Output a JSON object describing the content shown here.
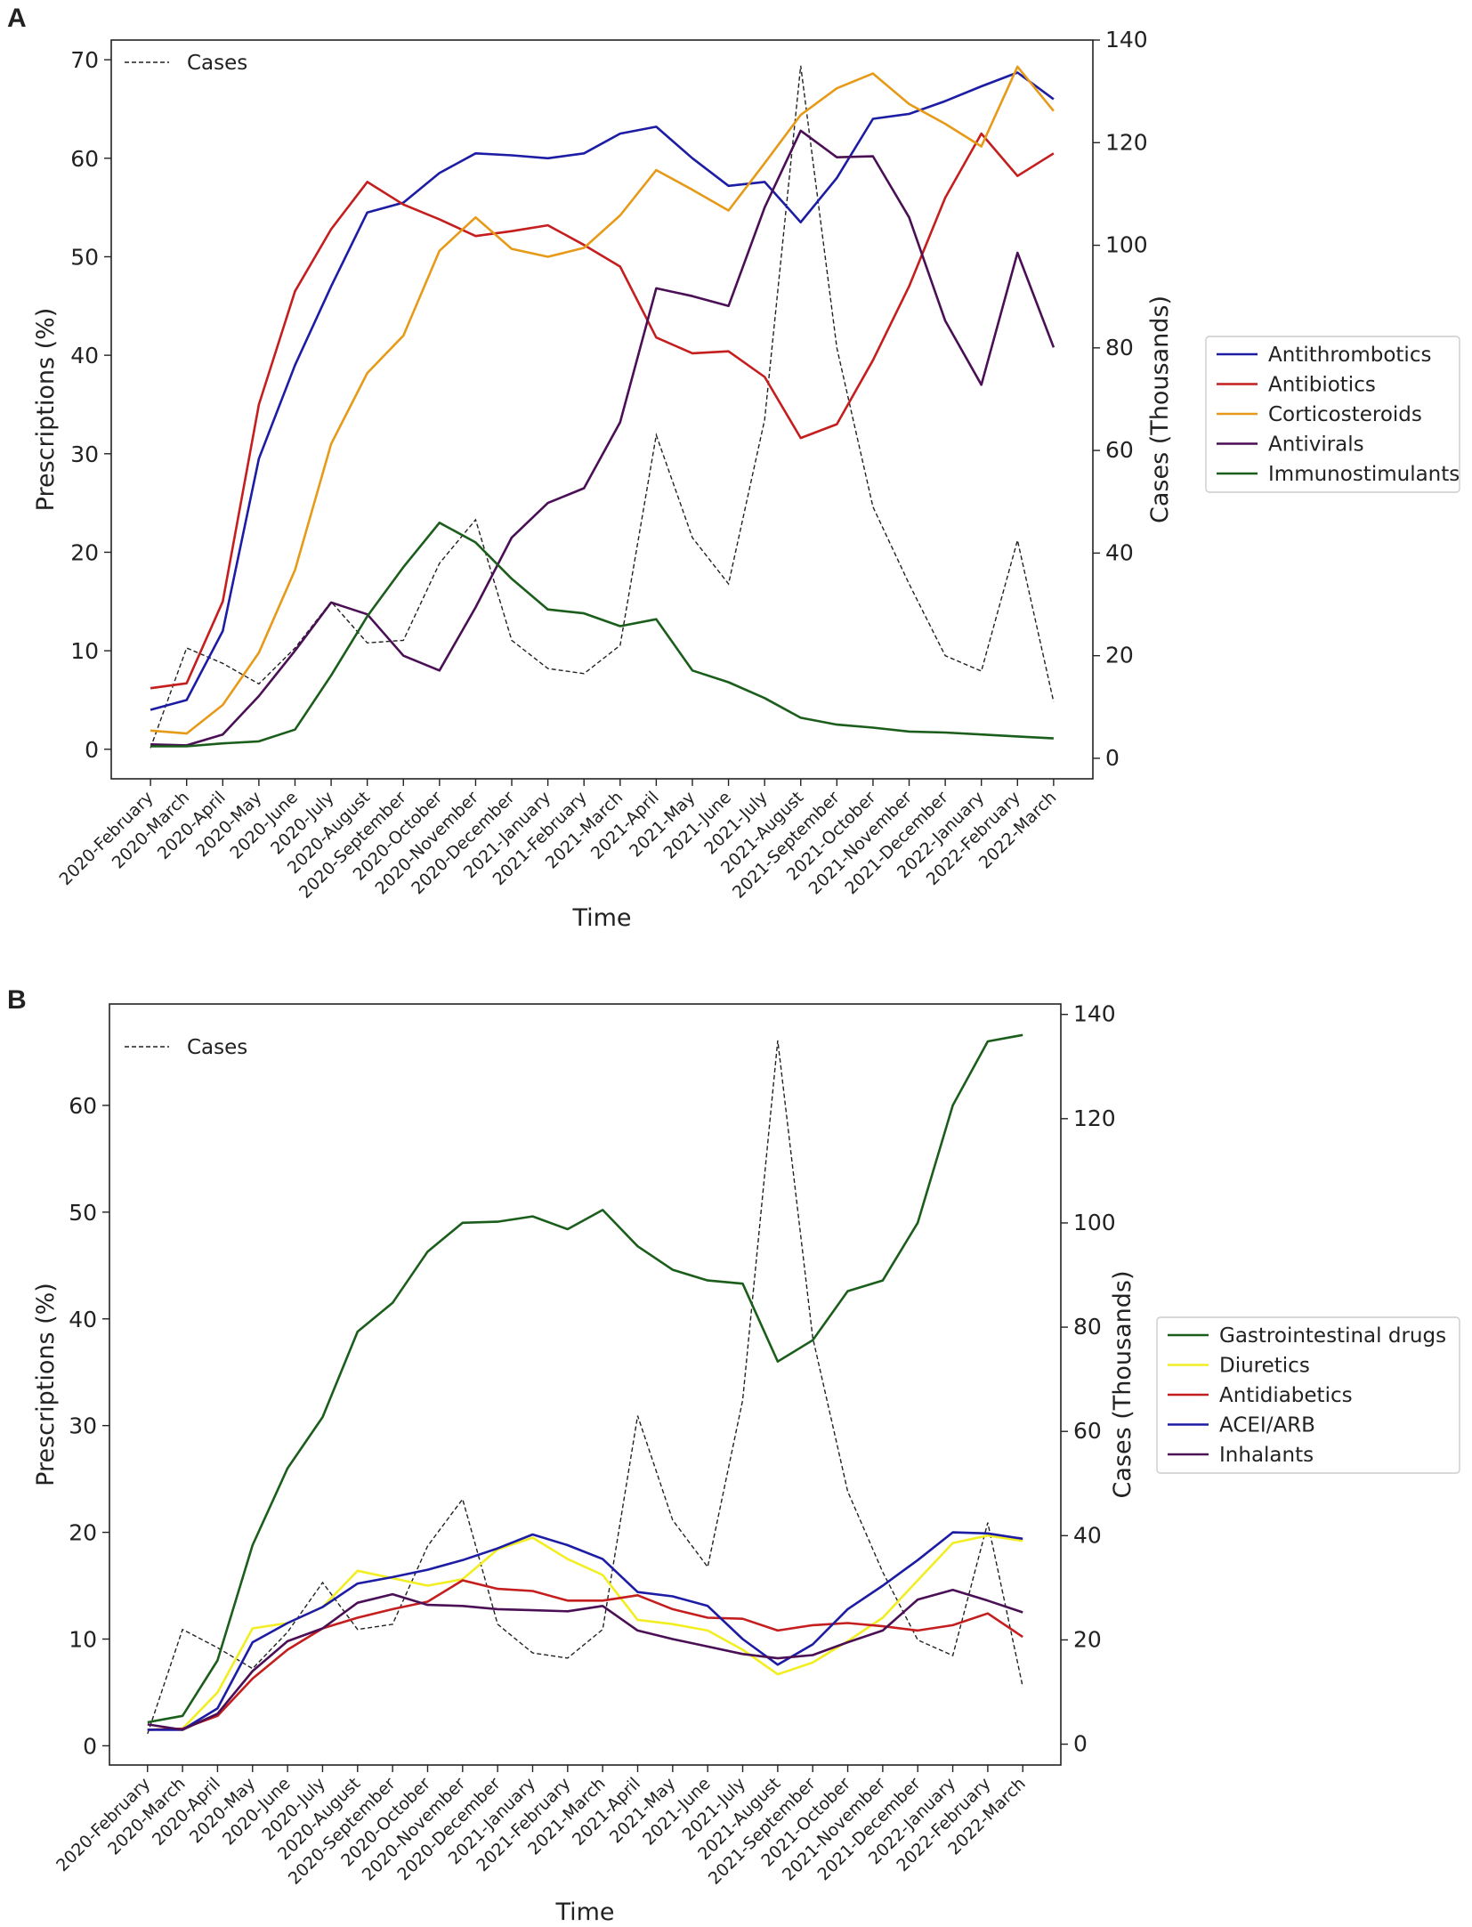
{
  "figure": {
    "panels": [
      {
        "label": "A",
        "legend_entries": [
          "Antithrombotics",
          "Antibiotics",
          "Corticosteroids",
          "Antivirals",
          "Immunostimulants"
        ],
        "cases_legend": "Cases"
      },
      {
        "label": "B",
        "legend_entries": [
          "Gastrointestinal drugs",
          "Diuretics",
          "Antidiabetics",
          "ACEI/ARB",
          "Inhalants"
        ],
        "cases_legend": "Cases"
      }
    ]
  },
  "chart_data": [
    {
      "type": "line",
      "panel": "A",
      "title": "",
      "xlabel": "Time",
      "ylabel": "Prescriptions (%)",
      "y2label": "Cases (Thousands)",
      "ylim": [
        -3,
        72
      ],
      "yticks": [
        0,
        10,
        20,
        30,
        40,
        50,
        60,
        70
      ],
      "y2lim": [
        -4,
        140
      ],
      "y2ticks": [
        0,
        20,
        40,
        60,
        80,
        100,
        120,
        140
      ],
      "legend_position": "right-outside",
      "categories": [
        "2020-February",
        "2020-March",
        "2020-April",
        "2020-May",
        "2020-June",
        "2020-July",
        "2020-August",
        "2020-September",
        "2020-October",
        "2020-November",
        "2020-December",
        "2021-January",
        "2021-February",
        "2021-March",
        "2021-April",
        "2021-May",
        "2021-June",
        "2021-July",
        "2021-August",
        "2021-September",
        "2021-October",
        "2021-November",
        "2021-December",
        "2022-January",
        "2022-February",
        "2022-March"
      ],
      "series": [
        {
          "name": "Antithrombotics",
          "color": "#1c1ca4",
          "values": [
            4.0,
            5.0,
            12.0,
            29.5,
            39.0,
            47.0,
            54.5,
            55.5,
            58.5,
            60.5,
            60.3,
            60.0,
            60.5,
            62.5,
            63.2,
            60.0,
            57.2,
            57.6,
            53.5,
            58.0,
            64.0,
            64.5,
            65.8,
            67.3,
            68.7,
            66.0
          ]
        },
        {
          "name": "Antibiotics",
          "color": "#c41e1e",
          "values": [
            6.2,
            6.7,
            15.0,
            35.0,
            46.5,
            52.8,
            57.6,
            55.3,
            53.8,
            52.1,
            52.6,
            53.2,
            51.2,
            49.0,
            41.8,
            40.2,
            40.4,
            37.8,
            31.6,
            33.0,
            39.5,
            47.0,
            56.0,
            62.5,
            58.2,
            60.5
          ]
        },
        {
          "name": "Corticosteroids",
          "color": "#e69a18",
          "values": [
            1.9,
            1.6,
            4.5,
            9.8,
            18.2,
            31.0,
            38.2,
            42.0,
            50.6,
            54.0,
            50.8,
            50.0,
            50.9,
            54.2,
            58.8,
            56.8,
            54.7,
            59.5,
            64.4,
            67.1,
            68.6,
            65.5,
            63.5,
            61.2,
            69.3,
            64.8
          ]
        },
        {
          "name": "Antivirals",
          "color": "#4a0f55",
          "values": [
            0.5,
            0.4,
            1.5,
            5.4,
            10.0,
            14.9,
            13.7,
            9.5,
            8.0,
            14.4,
            21.5,
            25.0,
            26.5,
            33.2,
            46.8,
            46.0,
            45.0,
            55.0,
            62.8,
            60.1,
            60.2,
            54.0,
            43.5,
            37.0,
            50.4,
            40.8
          ]
        },
        {
          "name": "Immunostimulants",
          "color": "#1b5e1b",
          "values": [
            0.3,
            0.3,
            0.6,
            0.8,
            2.0,
            7.5,
            13.5,
            18.5,
            23.0,
            21.0,
            17.3,
            14.2,
            13.8,
            12.5,
            13.2,
            8.0,
            6.8,
            5.2,
            3.2,
            2.5,
            2.2,
            1.8,
            1.7,
            1.5,
            1.3,
            1.1
          ]
        }
      ],
      "secondary_series": {
        "name": "Cases",
        "axis": "right",
        "style": "dashed",
        "color": "#222222",
        "values": [
          2,
          21.5,
          18.5,
          14.5,
          21.5,
          30.5,
          22.5,
          23,
          38,
          46.5,
          23,
          17.5,
          16.5,
          22,
          63,
          43,
          34,
          66,
          135,
          80,
          49,
          34,
          20,
          17,
          42.5,
          11
        ]
      }
    },
    {
      "type": "line",
      "panel": "B",
      "title": "",
      "xlabel": "Time",
      "ylabel": "Prescriptions (%)",
      "y2label": "Cases (Thousands)",
      "ylim": [
        -1.8,
        69.5
      ],
      "yticks": [
        0,
        10,
        20,
        30,
        40,
        50,
        60
      ],
      "y2lim": [
        -4,
        142
      ],
      "y2ticks": [
        0,
        20,
        40,
        60,
        80,
        100,
        120,
        140
      ],
      "legend_position": "right-outside",
      "categories": [
        "2020-February",
        "2020-March",
        "2020-April",
        "2020-May",
        "2020-June",
        "2020-July",
        "2020-August",
        "2020-September",
        "2020-October",
        "2020-November",
        "2020-December",
        "2021-January",
        "2021-February",
        "2021-March",
        "2021-April",
        "2021-May",
        "2021-June",
        "2021-July",
        "2021-August",
        "2021-September",
        "2021-October",
        "2021-November",
        "2021-December",
        "2022-January",
        "2022-February",
        "2022-March"
      ],
      "series": [
        {
          "name": "Gastrointestinal drugs",
          "color": "#1b5e1b",
          "values": [
            2.2,
            2.8,
            8.0,
            18.8,
            26.0,
            30.8,
            38.8,
            41.5,
            46.3,
            49.0,
            49.1,
            49.6,
            48.4,
            50.2,
            46.8,
            44.6,
            43.6,
            43.3,
            36.0,
            38.0,
            42.6,
            43.6,
            49.0,
            60.0,
            66.0,
            66.6
          ]
        },
        {
          "name": "Diuretics",
          "color": "#f2ee22",
          "values": [
            1.5,
            1.6,
            5.0,
            11.0,
            11.5,
            13.0,
            16.4,
            15.7,
            15.0,
            15.6,
            18.4,
            19.5,
            17.5,
            16.0,
            11.8,
            11.4,
            10.8,
            9.0,
            6.7,
            7.8,
            9.8,
            12.0,
            15.5,
            19.0,
            19.7,
            19.2
          ]
        },
        {
          "name": "Antidiabetics",
          "color": "#c41e1e",
          "values": [
            1.5,
            1.6,
            2.8,
            6.3,
            9.0,
            11.0,
            12.0,
            12.8,
            13.5,
            15.5,
            14.7,
            14.5,
            13.6,
            13.6,
            14.1,
            12.8,
            12.0,
            11.9,
            10.8,
            11.3,
            11.5,
            11.2,
            10.8,
            11.3,
            12.4,
            10.2
          ]
        },
        {
          "name": "ACEI/ARB",
          "color": "#1c1ca4",
          "values": [
            1.5,
            1.5,
            3.5,
            9.7,
            11.5,
            13.0,
            15.2,
            15.8,
            16.5,
            17.4,
            18.5,
            19.8,
            18.8,
            17.5,
            14.4,
            14.0,
            13.1,
            10.0,
            7.6,
            9.5,
            12.8,
            15.0,
            17.4,
            20.0,
            19.9,
            19.4
          ]
        },
        {
          "name": "Inhalants",
          "color": "#4a0f55",
          "values": [
            2.0,
            1.5,
            3.0,
            7.0,
            9.8,
            11.0,
            13.4,
            14.2,
            13.2,
            13.1,
            12.8,
            12.7,
            12.6,
            13.1,
            10.8,
            10.0,
            9.3,
            8.6,
            8.2,
            8.5,
            9.7,
            10.8,
            13.7,
            14.6,
            13.6,
            12.5
          ]
        }
      ],
      "secondary_series": {
        "name": "Cases",
        "axis": "right",
        "style": "dashed",
        "color": "#222222",
        "values": [
          2,
          22,
          18.5,
          14.5,
          21.5,
          31,
          22,
          23,
          38,
          47,
          23,
          17.5,
          16.5,
          22,
          63,
          43,
          34,
          66,
          135,
          78,
          48.5,
          33,
          20,
          17,
          42.5,
          11
        ]
      }
    }
  ]
}
